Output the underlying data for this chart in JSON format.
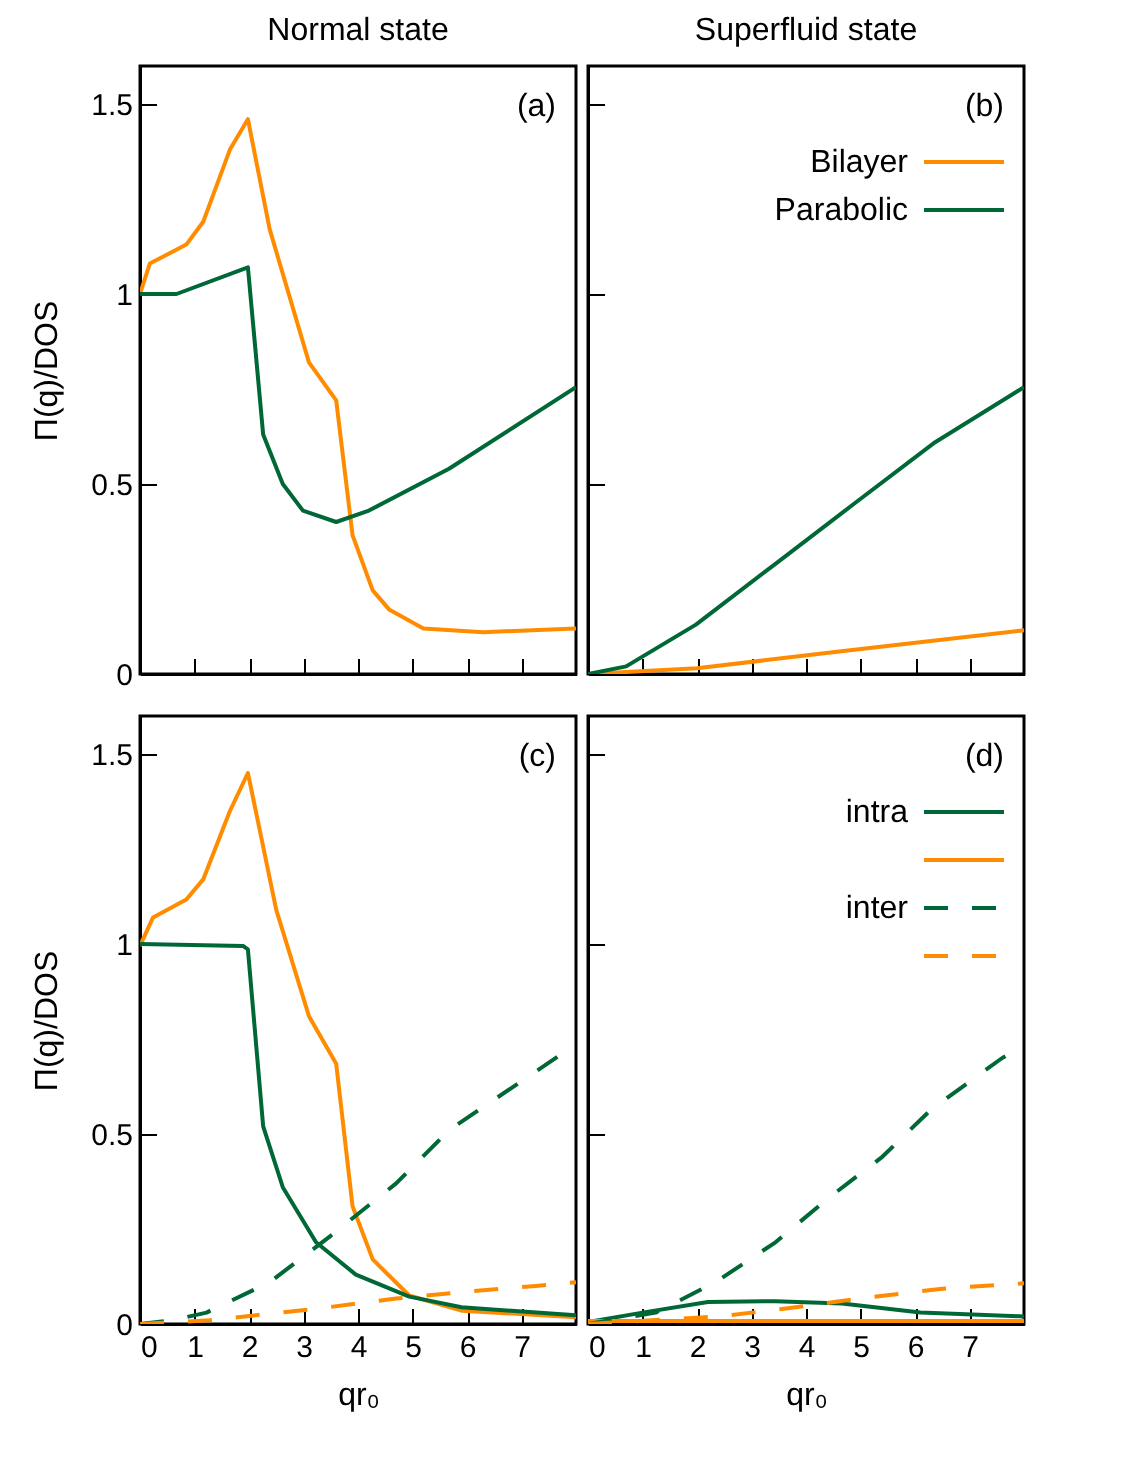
{
  "chart_data": [
    {
      "type": "line",
      "title": "Normal state",
      "ylabel": "Π(q)/DOS",
      "annotations": [
        "(a)"
      ],
      "xlim": [
        0,
        8
      ],
      "ylim": [
        0,
        1.6
      ],
      "xticks": [
        0,
        1,
        2,
        3,
        4,
        5,
        6,
        7
      ],
      "yticks": [
        0,
        0.5,
        1,
        1.5
      ],
      "tick_labels": "y",
      "line_style": "solid",
      "series": [
        {
          "color": "#ff8c00",
          "x": [
            0,
            0.18,
            0.85,
            1.16,
            1.65,
            1.98,
            2.38,
            3.1,
            3.6,
            3.9,
            4.27,
            4.57,
            5.2,
            6.3,
            8
          ],
          "values": [
            1.0,
            1.08,
            1.13,
            1.19,
            1.38,
            1.46,
            1.17,
            0.82,
            0.72,
            0.365,
            0.22,
            0.17,
            0.12,
            0.11,
            0.12
          ]
        },
        {
          "color": "#006837",
          "x": [
            0,
            0.67,
            1.98,
            2.26,
            2.62,
            2.99,
            3.6,
            4.2,
            5.67,
            8
          ],
          "values": [
            1.0,
            1.0,
            1.07,
            0.63,
            0.5,
            0.43,
            0.4,
            0.43,
            0.54,
            0.755
          ]
        }
      ]
    },
    {
      "type": "line",
      "title": "Superfluid state",
      "annotations": [
        "(b)"
      ],
      "xlim": [
        0,
        8
      ],
      "ylim": [
        0,
        1.6
      ],
      "xticks": [
        0,
        1,
        2,
        3,
        4,
        5,
        6,
        7
      ],
      "yticks": [
        0,
        0.5,
        1,
        1.5
      ],
      "tick_labels": false,
      "legend": "top right",
      "line_style": "solid",
      "series": [
        {
          "name": "Bilayer",
          "color": "#ff8c00",
          "x": [
            0,
            2,
            4.65,
            8
          ],
          "values": [
            0,
            0.015,
            0.06,
            0.115
          ]
        },
        {
          "name": "Parabolic",
          "color": "#006837",
          "x": [
            0,
            0.7,
            1.98,
            3.44,
            4.9,
            6.37,
            8
          ],
          "values": [
            0,
            0.02,
            0.13,
            0.29,
            0.45,
            0.61,
            0.755
          ]
        }
      ]
    },
    {
      "type": "line",
      "xlabel": "qr₀",
      "ylabel": "Π(q)/DOS",
      "annotations": [
        "(c)"
      ],
      "xlim": [
        0,
        8
      ],
      "ylim": [
        0,
        1.6
      ],
      "xticks": [
        0,
        1,
        2,
        3,
        4,
        5,
        6,
        7
      ],
      "yticks": [
        0,
        0.5,
        1,
        1.5
      ],
      "series": [
        {
          "color": "#ff8c00",
          "line_style": "solid",
          "x": [
            0,
            0.24,
            0.85,
            1.16,
            1.65,
            1.98,
            2.5,
            3.1,
            3.6,
            3.9,
            4.27,
            4.94,
            5.9,
            8
          ],
          "values": [
            0.995,
            1.07,
            1.117,
            1.17,
            1.35,
            1.45,
            1.09,
            0.81,
            0.685,
            0.31,
            0.17,
            0.075,
            0.035,
            0.018
          ]
        },
        {
          "color": "#006837",
          "line_style": "solid",
          "x": [
            0,
            1.89,
            1.98,
            2.26,
            2.62,
            3.23,
            3.96,
            4.94,
            5.9,
            8
          ],
          "values": [
            1.0,
            0.995,
            0.986,
            0.52,
            0.36,
            0.215,
            0.13,
            0.072,
            0.044,
            0.023
          ]
        },
        {
          "color": "#006837",
          "line_style": "dashed",
          "x": [
            0,
            0.6,
            1.22,
            2.38,
            3.48,
            4.7,
            5.67,
            7.68,
            8
          ],
          "values": [
            0,
            0.01,
            0.03,
            0.11,
            0.23,
            0.37,
            0.51,
            0.705,
            0.73
          ]
        },
        {
          "color": "#ff8c00",
          "line_style": "dashed",
          "x": [
            0,
            1.28,
            3.23,
            4.7,
            5.9,
            7.26,
            8
          ],
          "values": [
            0,
            0.01,
            0.04,
            0.067,
            0.084,
            0.1,
            0.11
          ]
        }
      ]
    },
    {
      "type": "line",
      "xlabel": "qr₀",
      "annotations": [
        "(d)"
      ],
      "xlim": [
        0,
        8
      ],
      "ylim": [
        0,
        1.6
      ],
      "xticks": [
        0,
        1,
        2,
        3,
        4,
        5,
        6,
        7
      ],
      "yticks": [
        0,
        0.5,
        1,
        1.5
      ],
      "tick_labels": "x",
      "legend": "top right",
      "series": [
        {
          "name": "intra",
          "color": "#006837",
          "line_style": "solid",
          "x": [
            0,
            1,
            2.2,
            3.44,
            4.66,
            6.1,
            8
          ],
          "values": [
            0.005,
            0.03,
            0.058,
            0.06,
            0.054,
            0.03,
            0.02
          ]
        },
        {
          "color": "#ff8c00",
          "line_style": "solid",
          "x": [
            0,
            8
          ],
          "values": [
            0.008,
            0.008
          ]
        },
        {
          "name": "inter",
          "color": "#006837",
          "line_style": "dashed",
          "x": [
            0,
            1.24,
            2.34,
            3.44,
            4.4,
            5.4,
            6.3,
            7.6,
            8
          ],
          "values": [
            0,
            0.03,
            0.11,
            0.215,
            0.33,
            0.44,
            0.565,
            0.7,
            0.73
          ]
        },
        {
          "color": "#ff8c00",
          "line_style": "dashed",
          "x": [
            0,
            2.4,
            3.6,
            5,
            6.5,
            8
          ],
          "values": [
            0,
            0.02,
            0.04,
            0.067,
            0.093,
            0.107
          ]
        }
      ]
    }
  ]
}
